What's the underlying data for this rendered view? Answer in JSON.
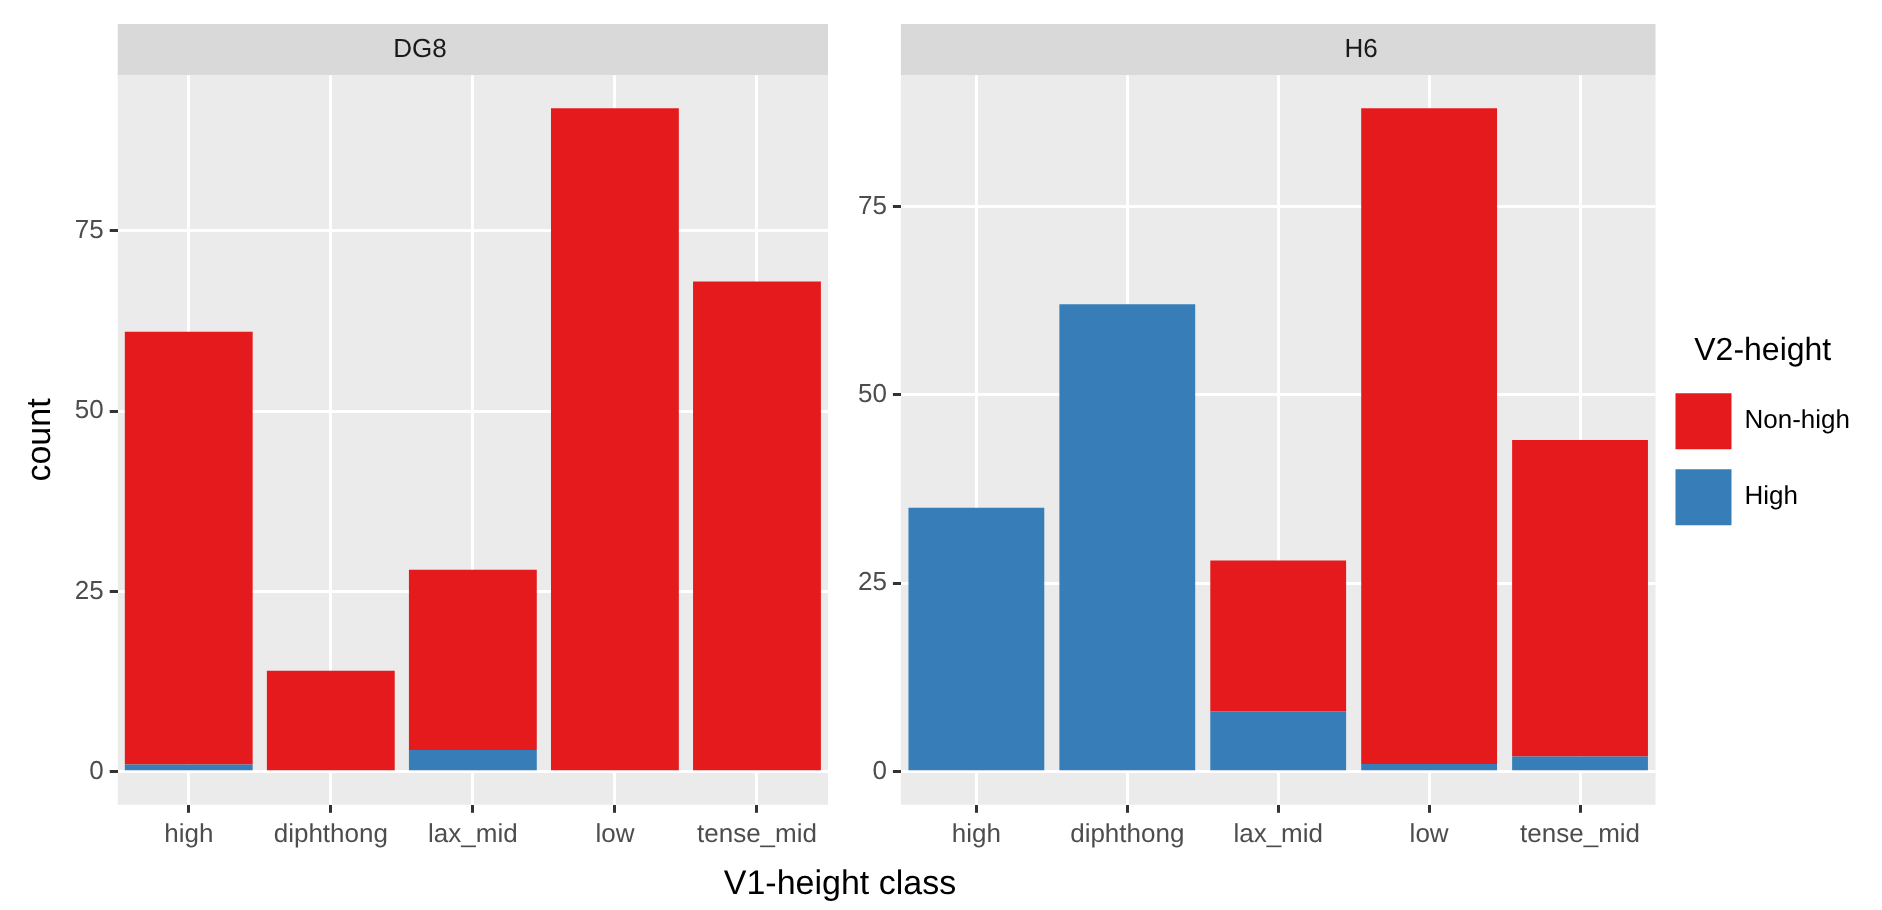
{
  "chart_data": [
    {
      "type": "bar",
      "title": "DG8",
      "ylabel": "count",
      "xlabel": "V1-height class",
      "categories": [
        "high",
        "diphthong",
        "lax_mid",
        "low",
        "tense_mid"
      ],
      "stacked": true,
      "grid": true,
      "legend": false,
      "ylim": [
        -4.6,
        96.6
      ],
      "yticks": [
        0,
        25,
        50,
        75
      ],
      "series": [
        {
          "color": "#377eb8",
          "values": [
            1,
            0,
            3,
            0,
            0
          ]
        },
        {
          "color": "#e41a1c",
          "values": [
            60,
            14,
            25,
            92,
            68
          ]
        }
      ]
    },
    {
      "type": "bar",
      "title": "H6",
      "legend_title": "V2-height",
      "categories": [
        "high",
        "diphthong",
        "lax_mid",
        "low",
        "tense_mid"
      ],
      "stacked": true,
      "grid": true,
      "legend": "right",
      "ylim": [
        -4.4,
        92.4
      ],
      "yticks": [
        0,
        25,
        50,
        75
      ],
      "series": [
        {
          "name": "High",
          "color": "#377eb8",
          "values": [
            35,
            62,
            8,
            1,
            2
          ]
        },
        {
          "name": "Non-high",
          "color": "#e41a1c",
          "values": [
            0,
            0,
            20,
            87,
            42
          ]
        }
      ]
    }
  ]
}
